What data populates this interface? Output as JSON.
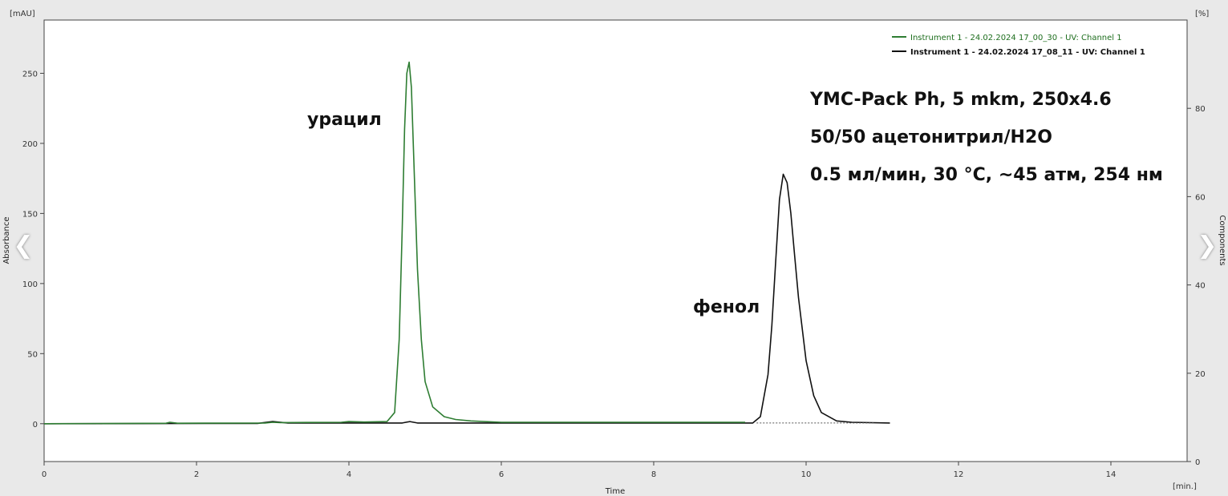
{
  "chart_data": {
    "type": "line",
    "ylabel_left": "Absorbance",
    "ylabel_right": "Components",
    "xlabel": "Time",
    "y_unit_left": "[mAU]",
    "y_unit_right": "[%]",
    "x_unit": "[min.]",
    "xlim": [
      0,
      15
    ],
    "ylim_left": [
      -27,
      288
    ],
    "ylim_right": [
      0,
      100
    ],
    "x_ticks": [
      0,
      2,
      4,
      6,
      8,
      10,
      12,
      14
    ],
    "y_ticks_left": [
      0,
      50,
      100,
      150,
      200,
      250
    ],
    "y_ticks_right": [
      0,
      20,
      40,
      60,
      80
    ],
    "grid": false,
    "legend_position": "top-right",
    "series": [
      {
        "name": "Instrument 1 - 24.02.2024 17_00_30 - UV: Channel 1",
        "color": "#2e7d32",
        "x": [
          0,
          1.6,
          1.65,
          1.75,
          2.9,
          3.0,
          3.1,
          3.9,
          4.0,
          4.2,
          4.5,
          4.6,
          4.66,
          4.7,
          4.73,
          4.76,
          4.79,
          4.82,
          4.86,
          4.9,
          4.95,
          5.0,
          5.1,
          5.25,
          5.4,
          5.6,
          6.0,
          9.0,
          9.2
        ],
        "y": [
          0,
          0.3,
          1,
          0.3,
          0.5,
          1,
          0.8,
          1,
          1.5,
          1.2,
          1.5,
          8,
          60,
          140,
          210,
          250,
          258,
          240,
          175,
          110,
          60,
          30,
          12,
          5,
          3,
          2,
          1,
          1,
          1
        ]
      },
      {
        "name": "Instrument 1 - 24.02.2024 17_08_11 - UV: Channel 1",
        "color": "#111111",
        "x": [
          0,
          2.8,
          3.0,
          3.2,
          4.7,
          4.8,
          4.9,
          9.3,
          9.4,
          9.5,
          9.55,
          9.6,
          9.65,
          9.7,
          9.75,
          9.8,
          9.85,
          9.9,
          10.0,
          10.1,
          10.2,
          10.4,
          10.6,
          11.1
        ],
        "y": [
          0,
          0.2,
          1.5,
          0.5,
          0.5,
          1.5,
          0.5,
          0.5,
          5,
          35,
          70,
          115,
          160,
          178,
          172,
          150,
          120,
          90,
          45,
          20,
          8,
          2,
          1,
          0.5
        ]
      }
    ],
    "annotations": {
      "uracil": {
        "text": "урацил",
        "x": 3.35,
        "y": 211
      },
      "phenol": {
        "text": "фенол",
        "x": 8.55,
        "y": 79
      }
    },
    "info_lines": [
      "YMC-Pack Ph, 5 mkm, 250x4.6",
      "50/50 ацетонитрил/H2O",
      "0.5 мл/мин, 30 °C, ~45 атм, 254 нм"
    ]
  },
  "nav": {
    "prev": "❮",
    "next": "❯"
  }
}
